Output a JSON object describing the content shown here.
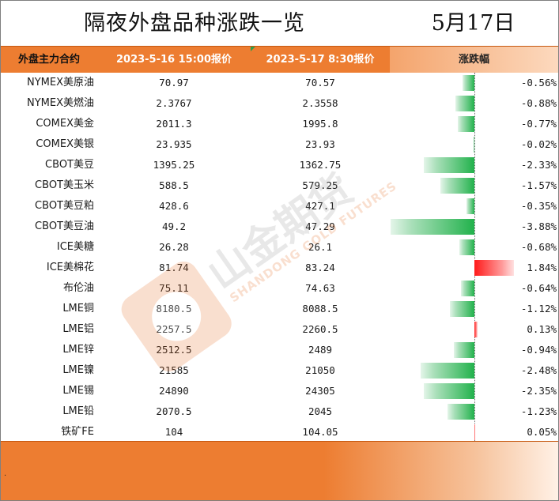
{
  "title": "隔夜外盘品种涨跌一览",
  "date": "5月17日",
  "watermark": {
    "cn": "山金期货",
    "en": "SHANDONG GOLD FUTURES"
  },
  "bottom_note": ".",
  "chart_data": {
    "type": "table",
    "columns": [
      "外盘主力合约",
      "2023-5-16 15:00报价",
      "2023-5-17 8:30报价",
      "涨跌幅"
    ],
    "rows": [
      {
        "name": "NYMEX美原油",
        "p1": "70.97",
        "p2": "70.57",
        "pct": "-0.56%",
        "change": -0.56
      },
      {
        "name": "NYMEX美燃油",
        "p1": "2.3767",
        "p2": "2.3558",
        "pct": "-0.88%",
        "change": -0.88
      },
      {
        "name": "COMEX美金",
        "p1": "2011.3",
        "p2": "1995.8",
        "pct": "-0.77%",
        "change": -0.77
      },
      {
        "name": "COMEX美银",
        "p1": "23.935",
        "p2": "23.93",
        "pct": "-0.02%",
        "change": -0.02
      },
      {
        "name": "CBOT美豆",
        "p1": "1395.25",
        "p2": "1362.75",
        "pct": "-2.33%",
        "change": -2.33
      },
      {
        "name": "CBOT美玉米",
        "p1": "588.5",
        "p2": "579.25",
        "pct": "-1.57%",
        "change": -1.57
      },
      {
        "name": "CBOT美豆粕",
        "p1": "428.6",
        "p2": "427.1",
        "pct": "-0.35%",
        "change": -0.35
      },
      {
        "name": "CBOT美豆油",
        "p1": "49.2",
        "p2": "47.29",
        "pct": "-3.88%",
        "change": -3.88
      },
      {
        "name": "ICE美糖",
        "p1": "26.28",
        "p2": "26.1",
        "pct": "-0.68%",
        "change": -0.68
      },
      {
        "name": "ICE美棉花",
        "p1": "81.74",
        "p2": "83.24",
        "pct": "1.84%",
        "change": 1.84
      },
      {
        "name": "布伦油",
        "p1": "75.11",
        "p2": "74.63",
        "pct": "-0.64%",
        "change": -0.64
      },
      {
        "name": "LME铜",
        "p1": "8180.5",
        "p2": "8088.5",
        "pct": "-1.12%",
        "change": -1.12
      },
      {
        "name": "LME铝",
        "p1": "2257.5",
        "p2": "2260.5",
        "pct": "0.13%",
        "change": 0.13
      },
      {
        "name": "LME锌",
        "p1": "2512.5",
        "p2": "2489",
        "pct": "-0.94%",
        "change": -0.94
      },
      {
        "name": "LME镍",
        "p1": "21585",
        "p2": "21050",
        "pct": "-2.48%",
        "change": -2.48
      },
      {
        "name": "LME锡",
        "p1": "24890",
        "p2": "24305",
        "pct": "-2.35%",
        "change": -2.35
      },
      {
        "name": "LME铅",
        "p1": "2070.5",
        "p2": "2045",
        "pct": "-1.23%",
        "change": -1.23
      },
      {
        "name": "铁矿FE",
        "p1": "104",
        "p2": "104.05",
        "pct": "0.05%",
        "change": 0.05
      }
    ],
    "bar_colors": {
      "negative": "#22b24c",
      "positive": "#ff1a1a"
    }
  }
}
